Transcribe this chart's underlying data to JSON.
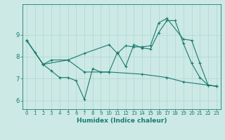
{
  "xlabel": "Humidex (Indice chaleur)",
  "bg_color": "#cce9e5",
  "line_color": "#1a7a6e",
  "grid_color": "#b0d5d0",
  "xlim": [
    -0.5,
    23.5
  ],
  "ylim": [
    5.6,
    10.4
  ],
  "yticks": [
    6,
    7,
    8,
    9
  ],
  "xticks": [
    0,
    1,
    2,
    3,
    4,
    5,
    6,
    7,
    8,
    9,
    10,
    11,
    12,
    13,
    14,
    15,
    16,
    17,
    18,
    19,
    20,
    21,
    22,
    23
  ],
  "line1_x": [
    0,
    1,
    2,
    3,
    4,
    5,
    6,
    7,
    8,
    9,
    10,
    11,
    12,
    13,
    14,
    15,
    16,
    17,
    18,
    19,
    20,
    21,
    22,
    23
  ],
  "line1_y": [
    8.75,
    8.2,
    7.65,
    7.35,
    7.05,
    7.05,
    6.9,
    6.05,
    7.45,
    7.3,
    7.3,
    8.2,
    7.55,
    8.55,
    8.4,
    8.35,
    9.1,
    9.65,
    9.65,
    8.6,
    7.7,
    7.05,
    6.7,
    6.65
  ],
  "line2_x": [
    0,
    2,
    3,
    5,
    7,
    10,
    11,
    12,
    13,
    14,
    15,
    16,
    17,
    19,
    20,
    21,
    22,
    23
  ],
  "line2_y": [
    8.75,
    7.65,
    7.85,
    7.85,
    8.15,
    8.55,
    8.15,
    8.5,
    8.45,
    8.45,
    8.5,
    9.55,
    9.75,
    8.8,
    8.75,
    7.7,
    6.7,
    6.65
  ],
  "line3_x": [
    0,
    2,
    5,
    7,
    10,
    14,
    17,
    19,
    23
  ],
  "line3_y": [
    8.75,
    7.65,
    7.85,
    7.3,
    7.3,
    7.2,
    7.05,
    6.85,
    6.65
  ]
}
